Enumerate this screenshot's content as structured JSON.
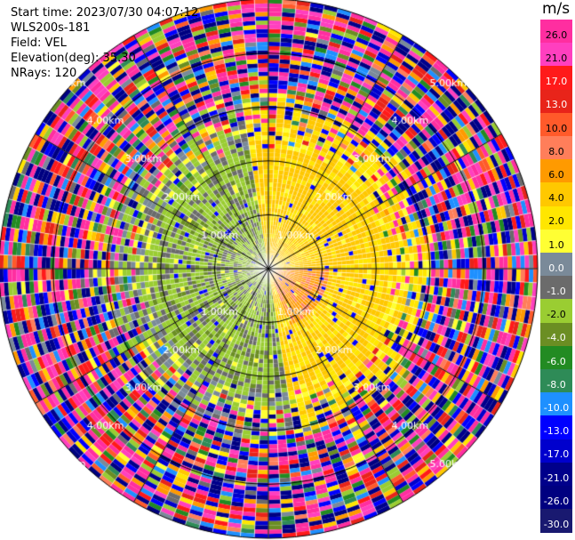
{
  "header": {
    "start_time": "Start time: 2023/07/30 04:07:12",
    "instrument": "WLS200s-181",
    "field": "Field: VEL",
    "elevation": "Elevation(deg): 35.30",
    "nrays": "NRays: 120"
  },
  "chart_data": {
    "type": "heatmap",
    "subtype": "polar-ppi",
    "field": "VEL",
    "units": "m/s",
    "n_rays": 120,
    "elevation_deg": 35.3,
    "range_rings_km": [
      1.0,
      2.0,
      3.0,
      4.0,
      5.0
    ],
    "ring_labels": [
      "1.00km",
      "2.00km",
      "3.00km",
      "4.00km",
      "5.00km"
    ],
    "range_max_km": 5.0,
    "color_levels": [
      "26.0",
      "21.0",
      "17.0",
      "13.0",
      "10.0",
      "8.0",
      "6.0",
      "4.0",
      "2.0",
      "1.0",
      "0.0",
      "-1.0",
      "-2.0",
      "-4.0",
      "-6.0",
      "-8.0",
      "-10.0",
      "-13.0",
      "-17.0",
      "-21.0",
      "-26.0",
      "-30.0"
    ],
    "color_scale": [
      "#ff2ea0",
      "#ff3fbf",
      "#ff1a1a",
      "#e8241a",
      "#ff5a2a",
      "#ff7e5a",
      "#ff9a00",
      "#ffc800",
      "#ffe600",
      "#ffff33",
      "#7a8a99",
      "#6b6b6b",
      "#9acd32",
      "#6b8e23",
      "#228b22",
      "#2e8b57",
      "#1e90ff",
      "#0000ff",
      "#0000cd",
      "#00008b",
      "#000080",
      "#191970"
    ],
    "near_field": {
      "range_km": [
        0.0,
        2.2
      ],
      "west_sector_mean": -3.0,
      "east_sector_mean": 2.5,
      "southeast_core_mean": 5.5
    }
  }
}
